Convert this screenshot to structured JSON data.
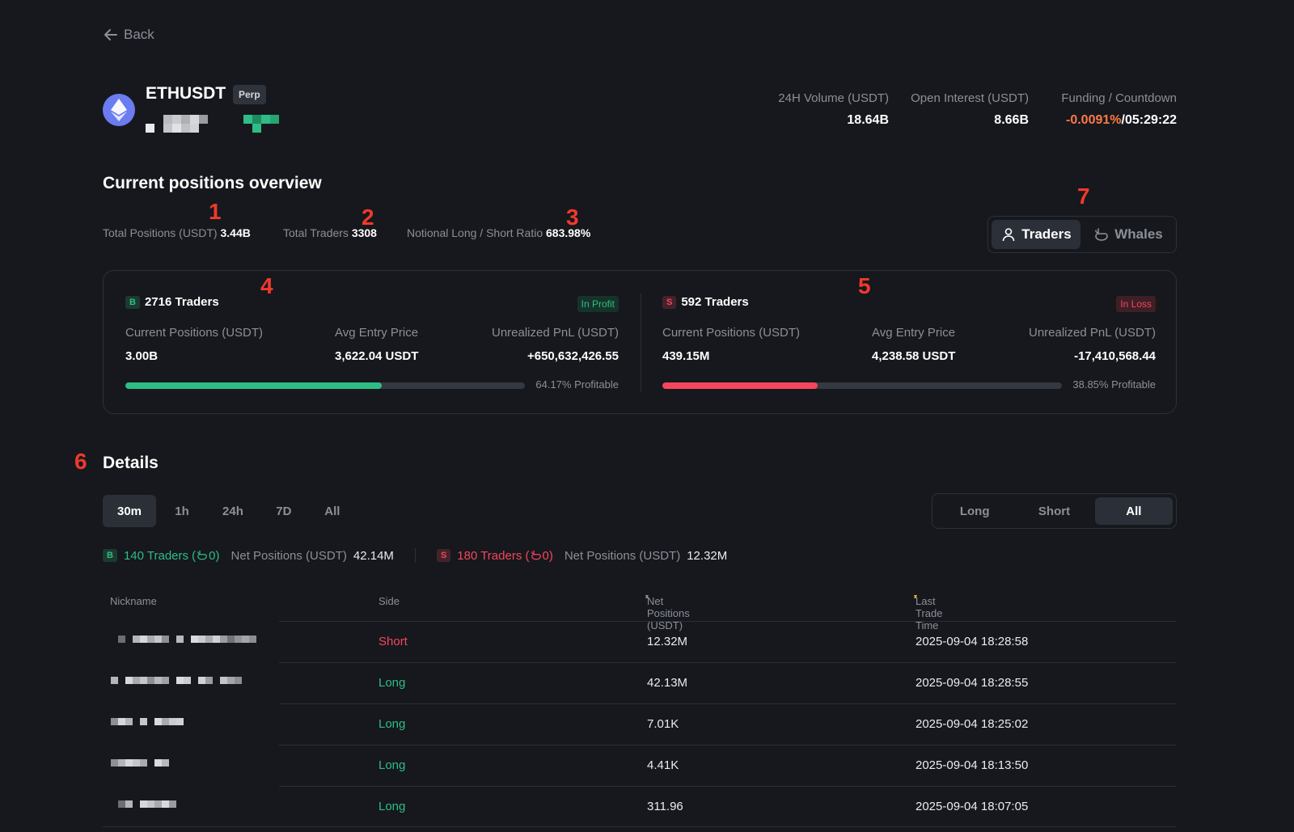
{
  "nav": {
    "back_label": "Back"
  },
  "instrument": {
    "symbol": "ETHUSDT",
    "contract_type": "Perp",
    "logo_icon": "ethereum-icon"
  },
  "header_stats": [
    {
      "label": "24H Volume (USDT)",
      "value": "18.64B"
    },
    {
      "label": "Open Interest (USDT)",
      "value": "8.66B"
    },
    {
      "label": "Funding / Countdown",
      "funding": "-0.0091%",
      "separator": "/",
      "countdown": "05:29:22"
    }
  ],
  "overview": {
    "title": "Current positions overview",
    "metrics": [
      {
        "label": "Total Positions (USDT)",
        "value": "3.44B"
      },
      {
        "label": "Total Traders",
        "value": "3308"
      },
      {
        "label": "Notional Long / Short Ratio",
        "value": "683.98%"
      }
    ],
    "view_toggle": [
      {
        "label": "Traders",
        "icon": "user-icon",
        "active": true
      },
      {
        "label": "Whales",
        "icon": "whale-icon",
        "active": false
      }
    ],
    "long_side": {
      "badge": "B",
      "traders": "2716 Traders",
      "status": "In Profit",
      "columns": [
        {
          "label": "Current Positions (USDT)",
          "value": "3.00B"
        },
        {
          "label": "Avg Entry Price",
          "value": "3,622.04 USDT"
        },
        {
          "label": "Unrealized PnL (USDT)",
          "value": "+650,632,426.55"
        }
      ],
      "profitable_fraction": 0.6417,
      "profitable_label": "64.17% Profitable",
      "color": "#2ebd85"
    },
    "short_side": {
      "badge": "S",
      "traders": "592 Traders",
      "status": "In Loss",
      "columns": [
        {
          "label": "Current Positions (USDT)",
          "value": "439.15M"
        },
        {
          "label": "Avg Entry Price",
          "value": "4,238.58 USDT"
        },
        {
          "label": "Unrealized PnL (USDT)",
          "value": "-17,410,568.44"
        }
      ],
      "profitable_fraction": 0.3885,
      "profitable_label": "38.85% Profitable",
      "color": "#f6465d"
    }
  },
  "annotations": [
    "1",
    "2",
    "3",
    "4",
    "5",
    "6",
    "7"
  ],
  "details": {
    "title": "Details",
    "timeframes": [
      {
        "label": "30m",
        "active": true
      },
      {
        "label": "1h",
        "active": false
      },
      {
        "label": "24h",
        "active": false
      },
      {
        "label": "7D",
        "active": false
      },
      {
        "label": "All",
        "active": false
      }
    ],
    "side_filter": [
      {
        "label": "Long",
        "active": false
      },
      {
        "label": "Short",
        "active": false
      },
      {
        "label": "All",
        "active": true
      }
    ],
    "summary": {
      "long": {
        "badge": "B",
        "traders": "140 Traders (",
        "whales": "0",
        "close": ")",
        "net_label": "Net Positions (USDT)",
        "net_value": "42.14M"
      },
      "short": {
        "badge": "S",
        "traders": "180 Traders (",
        "whales": "0",
        "close": ")",
        "net_label": "Net Positions (USDT)",
        "net_value": "12.32M"
      }
    },
    "columns": [
      "Nickname",
      "Side",
      "Net Positions (USDT)",
      "Last Trade Time"
    ],
    "rows": [
      {
        "side": "Short",
        "net": "12.32M",
        "time": "2025-09-04 18:28:58"
      },
      {
        "side": "Long",
        "net": "42.13M",
        "time": "2025-09-04 18:28:55"
      },
      {
        "side": "Long",
        "net": "7.01K",
        "time": "2025-09-04 18:25:02"
      },
      {
        "side": "Long",
        "net": "4.41K",
        "time": "2025-09-04 18:13:50"
      },
      {
        "side": "Long",
        "net": "311.96",
        "time": "2025-09-04 18:07:05"
      }
    ]
  }
}
